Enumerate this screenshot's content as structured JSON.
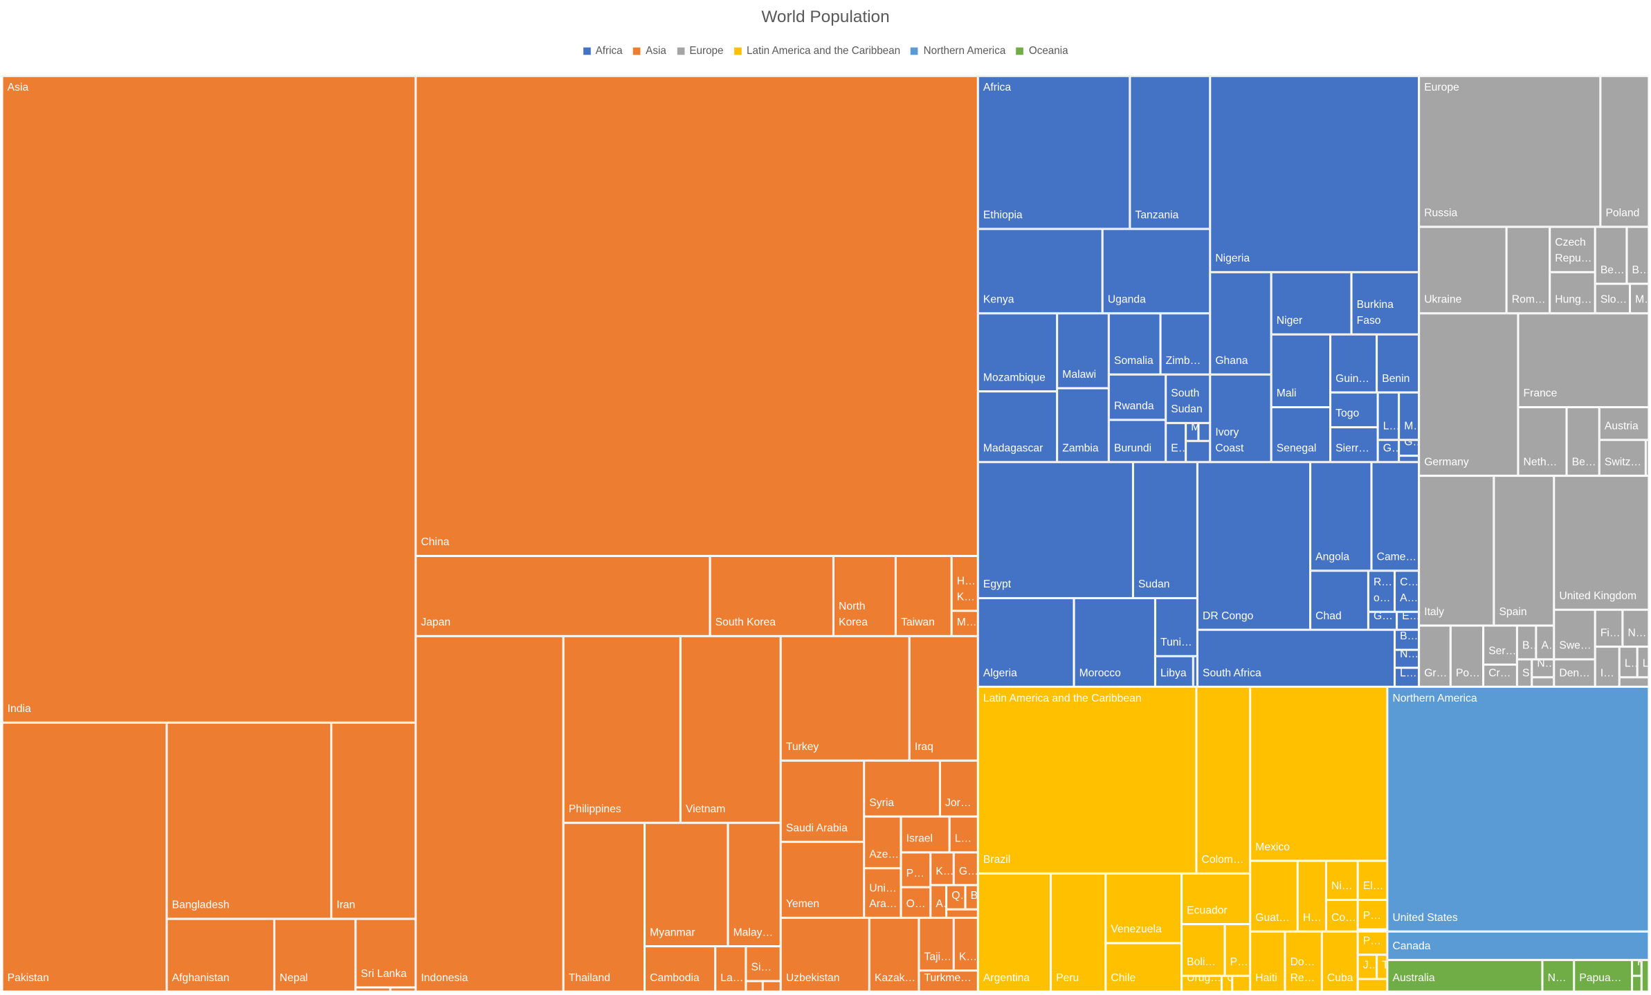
{
  "chart_data": {
    "type": "treemap",
    "title": "World Population",
    "legend_position": "top",
    "groups": [
      {
        "name": "Africa",
        "color": "#4472C4",
        "show_label": true,
        "items": [
          "Ethiopia",
          "Tanzania",
          "Nigeria",
          "Kenya",
          "Uganda",
          "Mozambique",
          "Madagascar",
          "Malawi",
          "Zambia",
          "Somalia",
          "Zimb…",
          "Rwanda",
          "South\nSudan",
          "Burundi",
          "E…",
          "M.D…",
          "Ghana",
          "Ivory\nCoast",
          "Niger",
          "Burkina\nFaso",
          "Mali",
          "Senegal",
          "Guin…",
          "Benin",
          "Togo",
          "Sierr…",
          "L…",
          "M…",
          "G…",
          "G…",
          "Egypt",
          "Sudan",
          "Algeria",
          "Morocco",
          "Tuni…",
          "Libya",
          "DR Congo",
          "Angola",
          "Came…",
          "Chad",
          "R…\no…",
          "C…\nA…",
          "G…",
          "E…",
          "South Africa",
          "B…",
          "N…",
          "L…"
        ]
      },
      {
        "name": "Asia",
        "color": "#ED7D31",
        "show_label": true,
        "items": [
          "India",
          "Pakistan",
          "Bangladesh",
          "Iran",
          "Afghanistan",
          "Nepal",
          "Sri Lanka",
          "China",
          "Japan",
          "South Korea",
          "North\nKorea",
          "Taiwan",
          "H…\nK…",
          "M…",
          "Indonesia",
          "Philippines",
          "Vietnam",
          "Thailand",
          "Myanmar",
          "Malay…",
          "Cambodia",
          "La…",
          "Si…",
          "Turkey",
          "Iraq",
          "Saudi Arabia",
          "Yemen",
          "Syria",
          "Jor…",
          "Aze…",
          "Uni…\nAra…",
          "Israel",
          "L…",
          "P…",
          "K…",
          "G…",
          "O…",
          "A…",
          "Q…",
          "B…",
          "Uzbekistan",
          "Kazak…",
          "Taji…",
          "K…",
          "Turkme…"
        ]
      },
      {
        "name": "Europe",
        "color": "#A5A5A5",
        "show_label": true,
        "items": [
          "Russia",
          "Poland",
          "Ukraine",
          "Rom…",
          "Czech\nRepu…",
          "Hung…",
          "Be…",
          "B…",
          "Slo…",
          "M…",
          "Germany",
          "France",
          "Neth…",
          "Be…",
          "Austria",
          "Switz…",
          "Italy",
          "Spain",
          "United Kingdom",
          "Gr…",
          "Po…",
          "Ser…",
          "Cr…",
          "B…",
          "A…",
          "S…",
          "N…",
          "Swe…",
          "Den…",
          "Fi…",
          "N…",
          "I…",
          "L…",
          "L…"
        ]
      },
      {
        "name": "Latin America and the Caribbean",
        "color": "#FFC000",
        "show_label": true,
        "items": [
          "Brazil",
          "Colom…",
          "Mexico",
          "Argentina",
          "Peru",
          "Venezuela",
          "Chile",
          "Ecuador",
          "Boli…",
          "P…",
          "Urug…",
          "G…",
          "Guat…",
          "H…",
          "Ni…",
          "El…",
          "Co…",
          "P…",
          "Haiti",
          "Do…\nRe…",
          "Cuba",
          "P…",
          "J…",
          "T…"
        ]
      },
      {
        "name": "Northern America",
        "color": "#5B9BD5",
        "show_label": true,
        "items": [
          "United States",
          "Canada"
        ]
      },
      {
        "name": "Oceania",
        "color": "#70AD47",
        "show_label": false,
        "items": [
          "Australia",
          "N…",
          "Papua…",
          "F…"
        ]
      }
    ]
  }
}
